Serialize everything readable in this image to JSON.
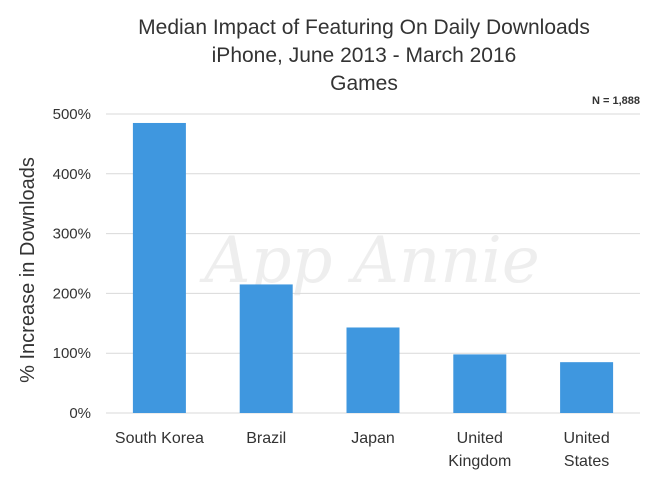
{
  "chart_data": {
    "type": "bar",
    "title": [
      "Median Impact of Featuring On Daily Downloads",
      "iPhone, June 2013 - March 2016",
      "Games"
    ],
    "note": "N = 1,888",
    "watermark": "App Annie",
    "ylabel": "% Increase in Downloads",
    "xlabel": "",
    "categories": [
      [
        "South Korea"
      ],
      [
        "Brazil"
      ],
      [
        "Japan"
      ],
      [
        "United",
        "Kingdom"
      ],
      [
        "United",
        "States"
      ]
    ],
    "values": [
      485,
      215,
      143,
      98,
      85
    ],
    "yticks": [
      0,
      100,
      200,
      300,
      400,
      500
    ],
    "ytick_labels": [
      "0%",
      "100%",
      "200%",
      "300%",
      "400%",
      "500%"
    ],
    "ylim": [
      0,
      500
    ],
    "grid": true,
    "legend": "none",
    "bar_color": "#3f97df",
    "grid_color": "#d9d9d9"
  }
}
